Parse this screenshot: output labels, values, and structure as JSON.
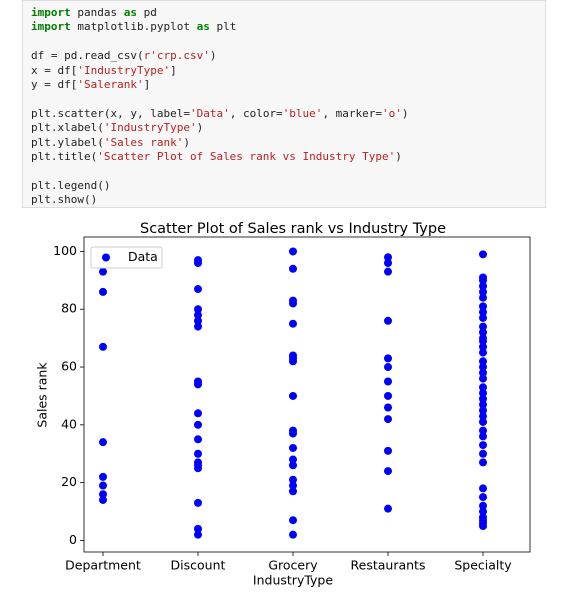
{
  "code": {
    "blocks": [
      [
        [
          {
            "text": "import",
            "color": "#008000",
            "bold": true
          },
          {
            "text": " pandas "
          },
          {
            "text": "as",
            "color": "#008000",
            "bold": true
          },
          {
            "text": " pd"
          }
        ],
        [
          {
            "text": "import",
            "color": "#008000",
            "bold": true
          },
          {
            "text": " matplotlib.pyplot "
          },
          {
            "text": "as",
            "color": "#008000",
            "bold": true
          },
          {
            "text": " plt"
          }
        ]
      ],
      [
        [
          {
            "text": "df = pd.read_csv("
          },
          {
            "text": "r'crp.csv'",
            "color": "#ba2121"
          },
          {
            "text": ")"
          }
        ],
        [
          {
            "text": "x = df["
          },
          {
            "text": "'IndustryType'",
            "color": "#ba2121"
          },
          {
            "text": "]"
          }
        ],
        [
          {
            "text": "y = df["
          },
          {
            "text": "'Salerank'",
            "color": "#ba2121"
          },
          {
            "text": "]"
          }
        ]
      ],
      [
        [
          {
            "text": "plt.scatter(x, y, label="
          },
          {
            "text": "'Data'",
            "color": "#ba2121"
          },
          {
            "text": ", color="
          },
          {
            "text": "'blue'",
            "color": "#ba2121"
          },
          {
            "text": ", marker="
          },
          {
            "text": "'o'",
            "color": "#ba2121"
          },
          {
            "text": ")"
          }
        ],
        [
          {
            "text": "plt.xlabel("
          },
          {
            "text": "'IndustryType'",
            "color": "#ba2121"
          },
          {
            "text": ")"
          }
        ],
        [
          {
            "text": "plt.ylabel("
          },
          {
            "text": "'Sales rank'",
            "color": "#ba2121"
          },
          {
            "text": ")"
          }
        ],
        [
          {
            "text": "plt.title("
          },
          {
            "text": "'Scatter Plot of Sales rank vs Industry Type'",
            "color": "#ba2121"
          },
          {
            "text": ")"
          }
        ]
      ],
      [
        [
          {
            "text": "plt.legend()"
          }
        ],
        [
          {
            "text": "plt.show()"
          }
        ]
      ]
    ]
  },
  "chart_data": {
    "type": "scatter",
    "title": "Scatter Plot of Sales rank vs Industry Type",
    "x_label": "IndustryType",
    "y_label": "Sales rank",
    "categories": [
      "Department",
      "Discount",
      "Grocery",
      "Restaurants",
      "Specialty"
    ],
    "ylim": [
      -4,
      105
    ],
    "yticks": [
      0,
      20,
      40,
      60,
      80,
      100
    ],
    "grid": false,
    "legend": "upper left",
    "series": [
      {
        "name": "Data",
        "color": "blue",
        "x": [
          "Department",
          "Department",
          "Department",
          "Department",
          "Department",
          "Department",
          "Department",
          "Department",
          "Discount",
          "Discount",
          "Discount",
          "Discount",
          "Discount",
          "Discount",
          "Discount",
          "Discount",
          "Discount",
          "Discount",
          "Discount",
          "Discount",
          "Discount",
          "Discount",
          "Discount",
          "Discount",
          "Discount",
          "Discount",
          "Discount",
          "Grocery",
          "Grocery",
          "Grocery",
          "Grocery",
          "Grocery",
          "Grocery",
          "Grocery",
          "Grocery",
          "Grocery",
          "Grocery",
          "Grocery",
          "Grocery",
          "Grocery",
          "Grocery",
          "Grocery",
          "Grocery",
          "Grocery",
          "Grocery",
          "Grocery",
          "Restaurants",
          "Restaurants",
          "Restaurants",
          "Restaurants",
          "Restaurants",
          "Restaurants",
          "Restaurants",
          "Restaurants",
          "Restaurants",
          "Restaurants",
          "Restaurants",
          "Restaurants",
          "Restaurants",
          "Specialty",
          "Specialty",
          "Specialty",
          "Specialty",
          "Specialty",
          "Specialty",
          "Specialty",
          "Specialty",
          "Specialty",
          "Specialty",
          "Specialty",
          "Specialty",
          "Specialty",
          "Specialty",
          "Specialty",
          "Specialty",
          "Specialty",
          "Specialty",
          "Specialty",
          "Specialty",
          "Specialty",
          "Specialty",
          "Specialty",
          "Specialty",
          "Specialty",
          "Specialty",
          "Specialty",
          "Specialty",
          "Specialty",
          "Specialty",
          "Specialty",
          "Specialty",
          "Specialty",
          "Specialty",
          "Specialty",
          "Specialty",
          "Specialty",
          "Specialty",
          "Specialty"
        ],
        "values": [
          93,
          86,
          67,
          34,
          22,
          19,
          16,
          14,
          97,
          96,
          87,
          80,
          78,
          76,
          74,
          55,
          54,
          44,
          40,
          35,
          30,
          27,
          26,
          25,
          13,
          4,
          2,
          100,
          94,
          83,
          82,
          75,
          64,
          63,
          62,
          50,
          38,
          37,
          32,
          28,
          26,
          21,
          19,
          17,
          7,
          2,
          98,
          96,
          93,
          76,
          63,
          60,
          55,
          50,
          46,
          42,
          31,
          24,
          11,
          99,
          91,
          90,
          88,
          86,
          84,
          81,
          79,
          77,
          74,
          72,
          70,
          69,
          67,
          65,
          62,
          60,
          58,
          56,
          53,
          51,
          49,
          47,
          45,
          43,
          41,
          38,
          36,
          33,
          30,
          27,
          18,
          15,
          12,
          10,
          8,
          7,
          6,
          5
        ]
      }
    ]
  }
}
